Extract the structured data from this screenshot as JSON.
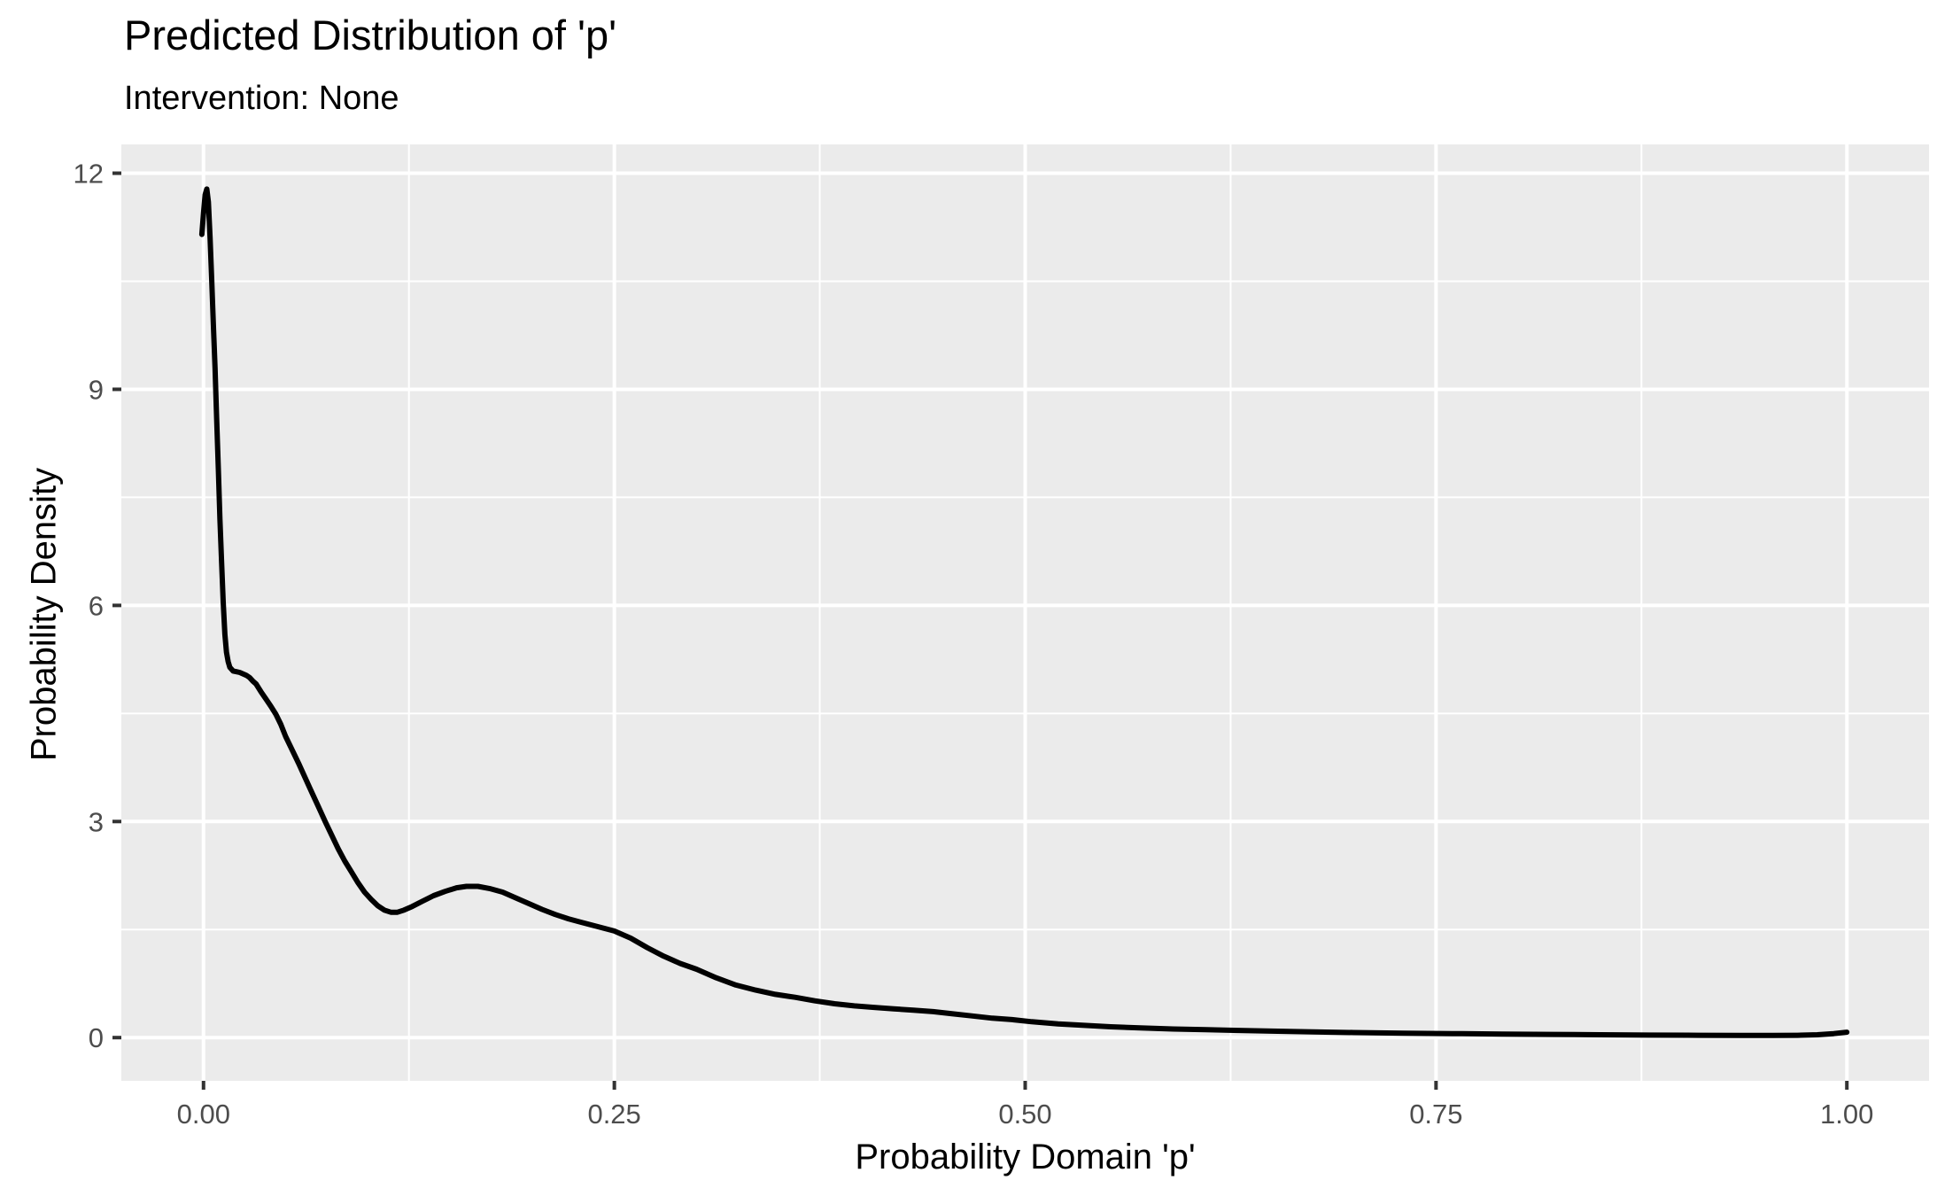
{
  "chart_data": {
    "type": "line",
    "subtype": "density",
    "title": "Predicted Distribution of 'p'",
    "subtitle": "Intervention: None",
    "xlabel": "Probability Domain 'p'",
    "ylabel": "Probability Density",
    "xlim": [
      -0.05,
      1.05
    ],
    "ylim": [
      -0.6,
      12.4
    ],
    "x_ticks": [
      0,
      0.25,
      0.5,
      0.75,
      1
    ],
    "x_tick_labels": [
      "0.00",
      "0.25",
      "0.50",
      "0.75",
      "1.00"
    ],
    "x_minor_ticks": [
      0.125,
      0.375,
      0.625,
      0.875
    ],
    "y_ticks": [
      0,
      3,
      6,
      9,
      12
    ],
    "y_tick_labels": [
      "0",
      "3",
      "6",
      "9",
      "12"
    ],
    "y_minor_ticks": [
      1.5,
      4.5,
      7.5,
      10.5
    ],
    "grid": true,
    "legend": "none",
    "theme": {
      "panel_bg": "#EBEBEB",
      "grid_color": "#FFFFFF",
      "curve_color": "#000000",
      "tick_label_color": "#4D4D4D",
      "tick_mark_color": "#333333",
      "title_color": "#000000"
    },
    "series": [
      {
        "name": "density of p",
        "points": [
          [
            -0.001,
            11.15
          ],
          [
            0.0,
            11.45
          ],
          [
            0.001,
            11.7
          ],
          [
            0.002,
            11.78
          ],
          [
            0.003,
            11.6
          ],
          [
            0.004,
            11.1
          ],
          [
            0.005,
            10.5
          ],
          [
            0.006,
            9.9
          ],
          [
            0.007,
            9.3
          ],
          [
            0.008,
            8.6
          ],
          [
            0.009,
            7.9
          ],
          [
            0.01,
            7.2
          ],
          [
            0.011,
            6.6
          ],
          [
            0.012,
            6.05
          ],
          [
            0.013,
            5.6
          ],
          [
            0.014,
            5.35
          ],
          [
            0.015,
            5.22
          ],
          [
            0.016,
            5.14
          ],
          [
            0.018,
            5.09
          ],
          [
            0.02,
            5.08
          ],
          [
            0.022,
            5.07
          ],
          [
            0.024,
            5.05
          ],
          [
            0.026,
            5.03
          ],
          [
            0.028,
            5.0
          ],
          [
            0.03,
            4.95
          ],
          [
            0.032,
            4.91
          ],
          [
            0.035,
            4.8
          ],
          [
            0.038,
            4.7
          ],
          [
            0.041,
            4.6
          ],
          [
            0.044,
            4.49
          ],
          [
            0.047,
            4.35
          ],
          [
            0.05,
            4.18
          ],
          [
            0.054,
            3.99
          ],
          [
            0.058,
            3.8
          ],
          [
            0.062,
            3.6
          ],
          [
            0.066,
            3.4
          ],
          [
            0.07,
            3.2
          ],
          [
            0.074,
            3.0
          ],
          [
            0.078,
            2.81
          ],
          [
            0.082,
            2.62
          ],
          [
            0.086,
            2.45
          ],
          [
            0.09,
            2.3
          ],
          [
            0.094,
            2.15
          ],
          [
            0.098,
            2.02
          ],
          [
            0.102,
            1.92
          ],
          [
            0.106,
            1.83
          ],
          [
            0.11,
            1.77
          ],
          [
            0.114,
            1.74
          ],
          [
            0.118,
            1.74
          ],
          [
            0.122,
            1.77
          ],
          [
            0.127,
            1.82
          ],
          [
            0.133,
            1.89
          ],
          [
            0.14,
            1.97
          ],
          [
            0.147,
            2.03
          ],
          [
            0.154,
            2.08
          ],
          [
            0.16,
            2.1
          ],
          [
            0.167,
            2.1
          ],
          [
            0.174,
            2.07
          ],
          [
            0.182,
            2.02
          ],
          [
            0.19,
            1.94
          ],
          [
            0.198,
            1.86
          ],
          [
            0.206,
            1.78
          ],
          [
            0.214,
            1.71
          ],
          [
            0.222,
            1.65
          ],
          [
            0.23,
            1.6
          ],
          [
            0.24,
            1.54
          ],
          [
            0.25,
            1.48
          ],
          [
            0.26,
            1.38
          ],
          [
            0.27,
            1.25
          ],
          [
            0.28,
            1.13
          ],
          [
            0.29,
            1.03
          ],
          [
            0.3,
            0.95
          ],
          [
            0.312,
            0.83
          ],
          [
            0.324,
            0.73
          ],
          [
            0.336,
            0.66
          ],
          [
            0.348,
            0.6
          ],
          [
            0.36,
            0.56
          ],
          [
            0.372,
            0.51
          ],
          [
            0.384,
            0.47
          ],
          [
            0.396,
            0.44
          ],
          [
            0.408,
            0.42
          ],
          [
            0.42,
            0.4
          ],
          [
            0.432,
            0.38
          ],
          [
            0.444,
            0.36
          ],
          [
            0.456,
            0.33
          ],
          [
            0.468,
            0.3
          ],
          [
            0.48,
            0.27
          ],
          [
            0.492,
            0.25
          ],
          [
            0.504,
            0.22
          ],
          [
            0.52,
            0.19
          ],
          [
            0.536,
            0.17
          ],
          [
            0.552,
            0.15
          ],
          [
            0.57,
            0.135
          ],
          [
            0.59,
            0.12
          ],
          [
            0.61,
            0.11
          ],
          [
            0.63,
            0.1
          ],
          [
            0.65,
            0.09
          ],
          [
            0.675,
            0.08
          ],
          [
            0.7,
            0.07
          ],
          [
            0.73,
            0.062
          ],
          [
            0.76,
            0.055
          ],
          [
            0.79,
            0.05
          ],
          [
            0.82,
            0.045
          ],
          [
            0.85,
            0.04
          ],
          [
            0.88,
            0.035
          ],
          [
            0.91,
            0.032
          ],
          [
            0.935,
            0.03
          ],
          [
            0.955,
            0.03
          ],
          [
            0.97,
            0.032
          ],
          [
            0.982,
            0.04
          ],
          [
            0.992,
            0.055
          ],
          [
            1.0,
            0.075
          ]
        ]
      }
    ]
  }
}
